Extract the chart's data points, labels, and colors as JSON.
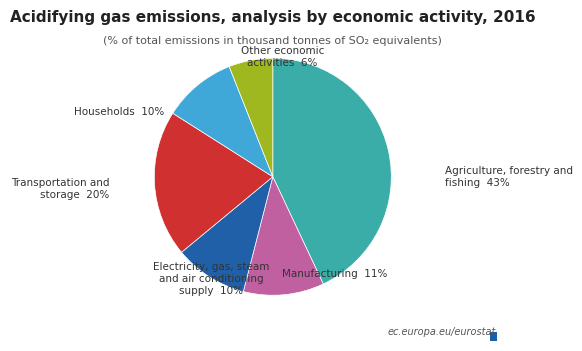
{
  "title": "Acidifying gas emissions, analysis by economic activity, 2016",
  "subtitle": "(% of total emissions in thousand tonnes of SO₂ equivalents)",
  "labels": [
    "Agriculture, forestry and\nfishing  43%",
    "Manufacturing  11%",
    "Electricity, gas, steam\nand air conditioning\nsupply  10%",
    "Transportation and\nstorage  20%",
    "Households  10%",
    "Other economic\nactivities  6%"
  ],
  "values": [
    43,
    11,
    10,
    20,
    10,
    6
  ],
  "colors": [
    "#3aada8",
    "#c060a0",
    "#2060a8",
    "#d03030",
    "#40a8d8",
    "#a0b820"
  ],
  "startangle": 90,
  "watermark": "ec.europa.eu/eurostat",
  "title_fontsize": 11,
  "subtitle_fontsize": 8,
  "label_fontsize": 7.5
}
